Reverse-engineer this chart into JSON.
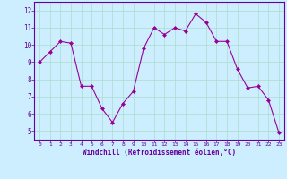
{
  "x": [
    0,
    1,
    2,
    3,
    4,
    5,
    6,
    7,
    8,
    9,
    10,
    11,
    12,
    13,
    14,
    15,
    16,
    17,
    18,
    19,
    20,
    21,
    22,
    23
  ],
  "y": [
    9.0,
    9.6,
    10.2,
    10.1,
    7.6,
    7.6,
    6.3,
    5.5,
    6.6,
    7.3,
    9.8,
    11.0,
    10.6,
    11.0,
    10.8,
    11.8,
    11.3,
    10.2,
    10.2,
    8.6,
    7.5,
    7.6,
    6.8,
    4.9
  ],
  "line_color": "#990099",
  "marker": "D",
  "marker_size": 2,
  "bg_color": "#cceeff",
  "grid_color": "#aaddcc",
  "xlabel": "Windchill (Refroidissement éolien,°C)",
  "xlabel_color": "#660099",
  "tick_color": "#660099",
  "spine_color": "#660099",
  "ylim": [
    4.5,
    12.5
  ],
  "xlim": [
    -0.5,
    23.5
  ],
  "yticks": [
    5,
    6,
    7,
    8,
    9,
    10,
    11,
    12
  ],
  "xticks": [
    0,
    1,
    2,
    3,
    4,
    5,
    6,
    7,
    8,
    9,
    10,
    11,
    12,
    13,
    14,
    15,
    16,
    17,
    18,
    19,
    20,
    21,
    22,
    23
  ],
  "figsize": [
    3.2,
    2.0
  ],
  "dpi": 100
}
